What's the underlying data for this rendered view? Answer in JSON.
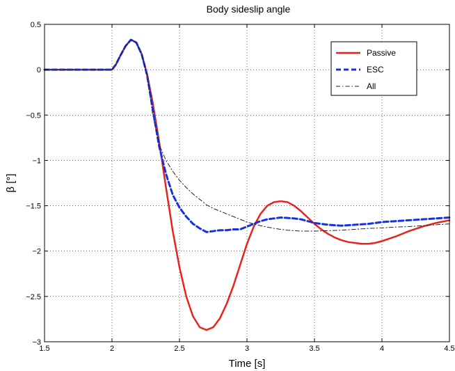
{
  "chart_data": {
    "type": "line",
    "title": "Body sideslip angle",
    "xlabel": "Time [s]",
    "ylabel": "β [°]",
    "xlim": [
      1.5,
      4.5
    ],
    "ylim": [
      -3,
      0.5
    ],
    "xticks": [
      1.5,
      2,
      2.5,
      3,
      3.5,
      4,
      4.5
    ],
    "yticks": [
      -3,
      -2.5,
      -2,
      -1.5,
      -1,
      -0.5,
      0,
      0.5
    ],
    "xtick_labels": [
      "1.5",
      "2",
      "2.5",
      "3",
      "3.5",
      "4",
      "4.5"
    ],
    "ytick_labels": [
      "−3",
      "−2.5",
      "−2",
      "−1.5",
      "−1",
      "−0.5",
      "0",
      "0.5"
    ],
    "grid": true,
    "legend_position": "top-right",
    "series": [
      {
        "name": "Passive",
        "color": "#e8231c",
        "style": "solid",
        "x": [
          1.5,
          2.0,
          2.03,
          2.06,
          2.1,
          2.14,
          2.18,
          2.22,
          2.26,
          2.3,
          2.35,
          2.4,
          2.45,
          2.5,
          2.55,
          2.6,
          2.65,
          2.7,
          2.75,
          2.8,
          2.85,
          2.9,
          2.95,
          3.0,
          3.05,
          3.1,
          3.15,
          3.2,
          3.25,
          3.3,
          3.35,
          3.4,
          3.45,
          3.5,
          3.55,
          3.6,
          3.65,
          3.7,
          3.75,
          3.8,
          3.85,
          3.9,
          3.95,
          4.0,
          4.1,
          4.2,
          4.3,
          4.4,
          4.5
        ],
        "y": [
          0,
          0,
          0.06,
          0.15,
          0.26,
          0.33,
          0.3,
          0.17,
          -0.05,
          -0.35,
          -0.8,
          -1.3,
          -1.78,
          -2.18,
          -2.5,
          -2.72,
          -2.84,
          -2.87,
          -2.84,
          -2.74,
          -2.58,
          -2.38,
          -2.15,
          -1.92,
          -1.73,
          -1.59,
          -1.5,
          -1.46,
          -1.45,
          -1.46,
          -1.5,
          -1.56,
          -1.63,
          -1.7,
          -1.76,
          -1.81,
          -1.85,
          -1.88,
          -1.9,
          -1.91,
          -1.92,
          -1.92,
          -1.91,
          -1.89,
          -1.84,
          -1.78,
          -1.73,
          -1.69,
          -1.66
        ]
      },
      {
        "name": "ESC",
        "color": "#1632e0",
        "style": "dashed",
        "x": [
          1.5,
          2.0,
          2.03,
          2.06,
          2.1,
          2.14,
          2.18,
          2.22,
          2.26,
          2.3,
          2.35,
          2.4,
          2.45,
          2.5,
          2.55,
          2.6,
          2.65,
          2.7,
          2.75,
          2.8,
          2.85,
          2.9,
          2.95,
          3.0,
          3.05,
          3.1,
          3.15,
          3.2,
          3.25,
          3.3,
          3.35,
          3.4,
          3.45,
          3.5,
          3.6,
          3.7,
          3.8,
          3.9,
          4.0,
          4.1,
          4.2,
          4.3,
          4.4,
          4.5
        ],
        "y": [
          0,
          0,
          0.06,
          0.15,
          0.26,
          0.33,
          0.3,
          0.17,
          -0.06,
          -0.42,
          -0.85,
          -1.15,
          -1.38,
          -1.52,
          -1.62,
          -1.7,
          -1.75,
          -1.79,
          -1.78,
          -1.77,
          -1.77,
          -1.76,
          -1.76,
          -1.73,
          -1.7,
          -1.67,
          -1.65,
          -1.64,
          -1.63,
          -1.635,
          -1.64,
          -1.65,
          -1.67,
          -1.69,
          -1.71,
          -1.72,
          -1.71,
          -1.7,
          -1.68,
          -1.67,
          -1.66,
          -1.65,
          -1.64,
          -1.63
        ]
      },
      {
        "name": "All",
        "color": "#222222",
        "style": "dashdot",
        "x": [
          1.5,
          2.0,
          2.03,
          2.06,
          2.1,
          2.14,
          2.18,
          2.22,
          2.26,
          2.3,
          2.35,
          2.4,
          2.45,
          2.5,
          2.55,
          2.6,
          2.65,
          2.7,
          2.75,
          2.8,
          2.85,
          2.9,
          2.95,
          3.0,
          3.1,
          3.2,
          3.3,
          3.4,
          3.5,
          3.6,
          3.7,
          3.8,
          3.9,
          4.0,
          4.1,
          4.2,
          4.3,
          4.4,
          4.5
        ],
        "y": [
          0,
          0,
          0.06,
          0.15,
          0.26,
          0.33,
          0.3,
          0.17,
          -0.06,
          -0.48,
          -0.83,
          -1.0,
          -1.12,
          -1.22,
          -1.3,
          -1.37,
          -1.43,
          -1.49,
          -1.53,
          -1.56,
          -1.59,
          -1.62,
          -1.65,
          -1.68,
          -1.72,
          -1.75,
          -1.77,
          -1.78,
          -1.78,
          -1.775,
          -1.77,
          -1.76,
          -1.75,
          -1.745,
          -1.735,
          -1.73,
          -1.72,
          -1.71,
          -1.7
        ]
      }
    ]
  }
}
